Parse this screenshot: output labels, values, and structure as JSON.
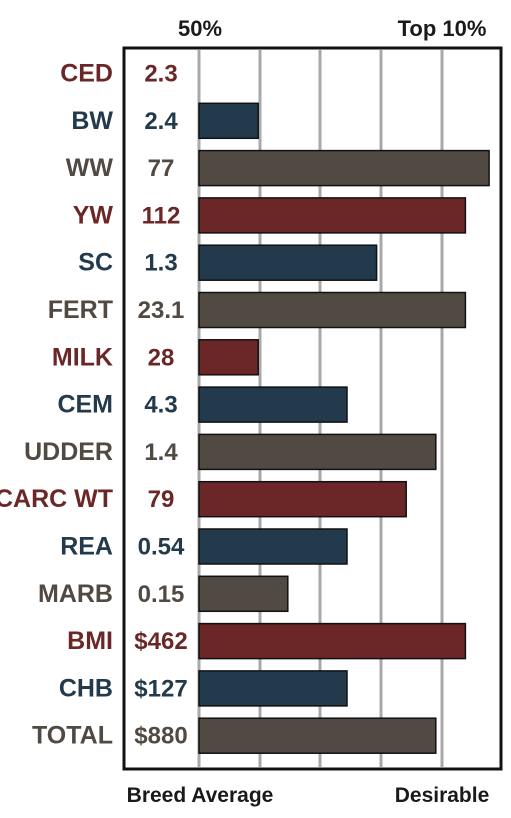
{
  "chart_data": {
    "type": "bar",
    "orientation": "horizontal",
    "top_labels": {
      "left": "50%",
      "right": "Top 10%"
    },
    "bottom_labels": {
      "left": "Breed Average",
      "right": "Desirable"
    },
    "percent_scale": [
      50,
      10
    ],
    "grid": true,
    "rows": [
      {
        "trait": "CED",
        "value_label": "2.3",
        "level": 0.0,
        "color": "#6b2727"
      },
      {
        "trait": "BW",
        "value_label": "2.4",
        "level": 0.2,
        "color": "#223a4b"
      },
      {
        "trait": "WW",
        "value_label": "77",
        "level": 0.98,
        "color": "#514a42"
      },
      {
        "trait": "YW",
        "value_label": "112",
        "level": 0.9,
        "color": "#6b2727"
      },
      {
        "trait": "SC",
        "value_label": "1.3",
        "level": 0.6,
        "color": "#223a4b"
      },
      {
        "trait": "FERT",
        "value_label": "23.1",
        "level": 0.9,
        "color": "#514a42"
      },
      {
        "trait": "MILK",
        "value_label": "28",
        "level": 0.2,
        "color": "#6b2727"
      },
      {
        "trait": "CEM",
        "value_label": "4.3",
        "level": 0.5,
        "color": "#223a4b"
      },
      {
        "trait": "UDDER",
        "value_label": "1.4",
        "level": 0.8,
        "color": "#514a42"
      },
      {
        "trait": "CARC WT",
        "value_label": "79",
        "level": 0.7,
        "color": "#6b2727"
      },
      {
        "trait": "REA",
        "value_label": "0.54",
        "level": 0.5,
        "color": "#223a4b"
      },
      {
        "trait": "MARB",
        "value_label": "0.15",
        "level": 0.3,
        "color": "#514a42"
      },
      {
        "trait": "BMI",
        "value_label": "$462",
        "level": 0.9,
        "color": "#6b2727"
      },
      {
        "trait": "CHB",
        "value_label": "$127",
        "level": 0.5,
        "color": "#223a4b"
      },
      {
        "trait": "TOTAL",
        "value_label": "$880",
        "level": 0.8,
        "color": "#514a42"
      }
    ]
  }
}
